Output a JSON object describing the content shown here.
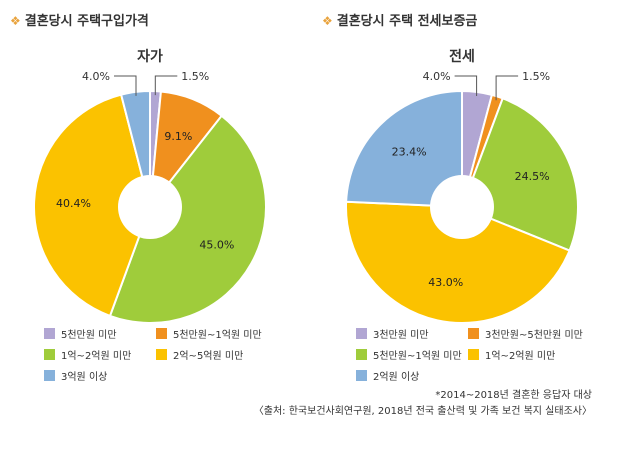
{
  "chart_data": [
    {
      "type": "pie",
      "heading": "결혼당시 주택구입가격",
      "title": "자가",
      "categories": [
        "5천만원 미만",
        "5천만원~1억원 미만",
        "1억~2억원 미만",
        "2억~5억원 미만",
        "3억원 이상"
      ],
      "values": [
        1.5,
        9.1,
        45.0,
        40.4,
        4.0
      ],
      "value_labels": [
        "1.5%",
        "9.1%",
        "45.0%",
        "40.4%",
        "4.0%"
      ],
      "colors": [
        "#b1a6d3",
        "#f0901e",
        "#9fcc3b",
        "#fbc200",
        "#86b1db"
      ],
      "hole": true
    },
    {
      "type": "pie",
      "heading": "결혼당시 주택 전세보증금",
      "title": "전세",
      "categories": [
        "3천만원 미만",
        "3천만원~5천만원 미만",
        "5천만원~1억원 미만",
        "1억~2억원 미만",
        "2억원 이상"
      ],
      "values": [
        4.0,
        1.5,
        24.5,
        43.0,
        23.4
      ],
      "value_labels": [
        "4.0%",
        "1.5%",
        "24.5%",
        "43.0%",
        "23.4%"
      ],
      "colors": [
        "#b1a6d3",
        "#f0901e",
        "#9fcc3b",
        "#fbc200",
        "#86b1db"
      ],
      "hole": true
    }
  ],
  "footnotes": {
    "note": "*2014~2018년 결혼한 응답자 대상",
    "source": "〈출처: 한국보건사회연구원, 2018년 전국 출산력 및 가족 보건 복지 실태조사〉"
  }
}
